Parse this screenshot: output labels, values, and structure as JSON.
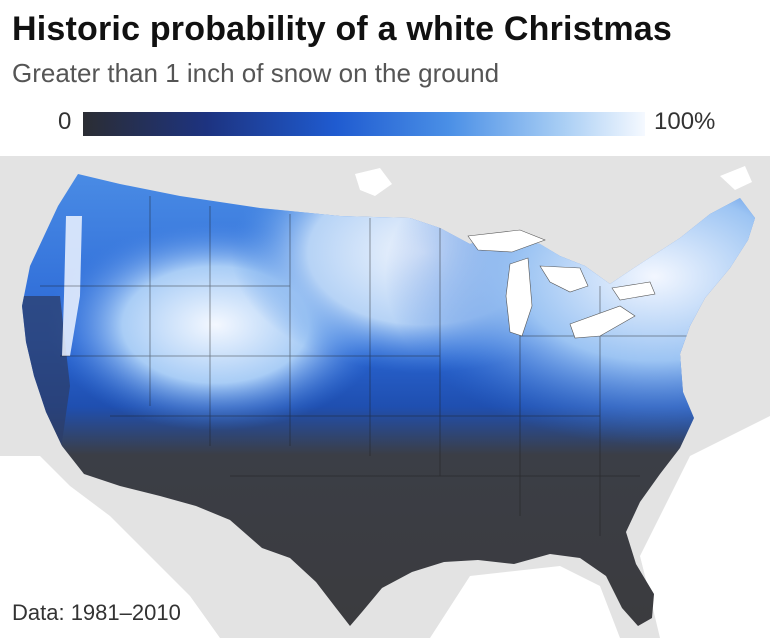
{
  "title": "Historic probability of a white Christmas",
  "subtitle": "Greater than 1 inch of snow on the ground",
  "legend": {
    "min": "0",
    "max": "100%"
  },
  "source": "Data: 1981–2010",
  "colors": {
    "background_land": "#e3e3e3",
    "low": "#3a3b3f",
    "mid_dark": "#1d3380",
    "mid": "#1f5bd0",
    "light": "#a7cdf4",
    "high": "#f5f9ff",
    "water": "#ffffff",
    "borders": "#1c1c1c"
  }
}
